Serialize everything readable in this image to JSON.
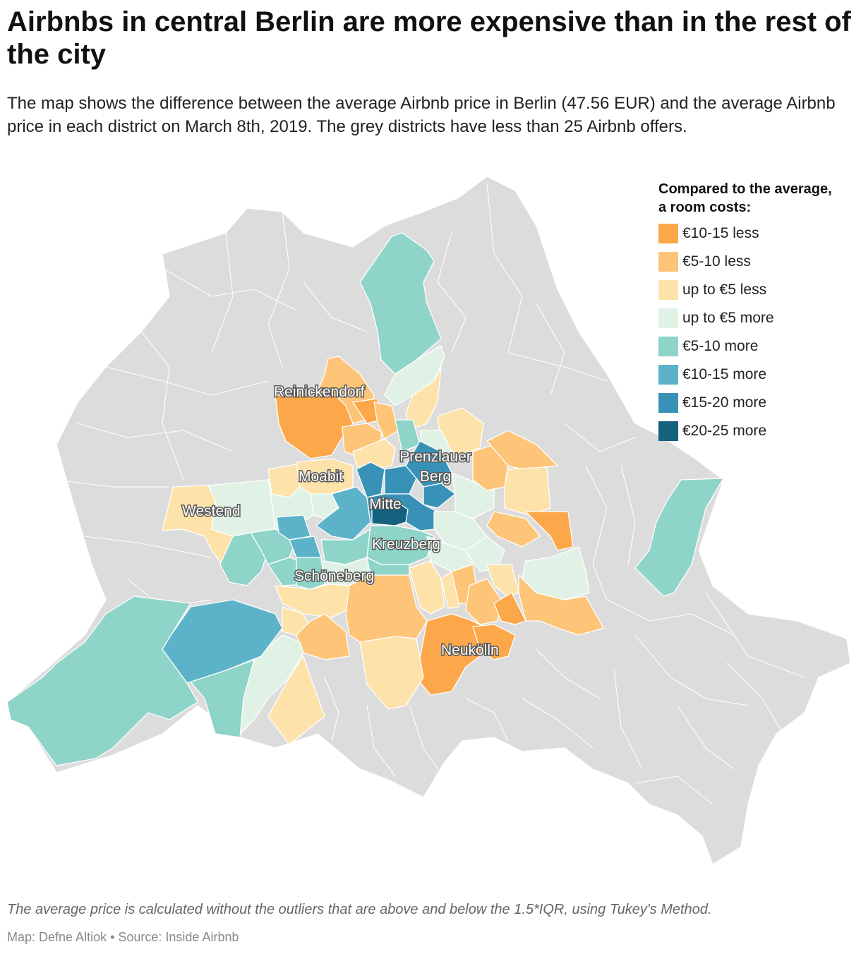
{
  "title": "Airbnbs in central Berlin are more expensive than in the rest of the city",
  "subtitle": "The map shows the difference between the average Airbnb price in Berlin (47.56 EUR) and the average Airbnb price in each district on March 8th, 2019. The grey districts have less than 25 Airbnb offers.",
  "legend": {
    "title_line1": "Compared to the average,",
    "title_line2": "a room costs:",
    "items": [
      {
        "label": "€10-15 less",
        "color": "#fca74a"
      },
      {
        "label": "€5-10 less",
        "color": "#fec478"
      },
      {
        "label": "up to €5 less",
        "color": "#fde2a9"
      },
      {
        "label": "up to €5 more",
        "color": "#e0f2e5"
      },
      {
        "label": "€5-10 more",
        "color": "#8ed4c8"
      },
      {
        "label": "€10-15 more",
        "color": "#5cb3c9"
      },
      {
        "label": "€15-20 more",
        "color": "#3892b7"
      },
      {
        "label": "€20-25 more",
        "color": "#15627e"
      }
    ]
  },
  "map": {
    "no_data_color": "#dcdcdc",
    "district_labels": {
      "reinickendorf": "Reinickendorf",
      "prenzlauer_berg_line1": "Prenzlauer",
      "prenzlauer_berg_line2": "Berg",
      "moabit": "Moabit",
      "westend": "Westend",
      "mitte": "Mitte",
      "kreuzberg": "Kreuzberg",
      "schoeneberg": "Schöneberg",
      "neukoelln": "Neukölln"
    }
  },
  "note": "The average price is calculated without the outliers that are above and below the 1.5*IQR, using Tukey's Method.",
  "credit": "Map: Defne Altiok • Source: Inside Airbnb"
}
